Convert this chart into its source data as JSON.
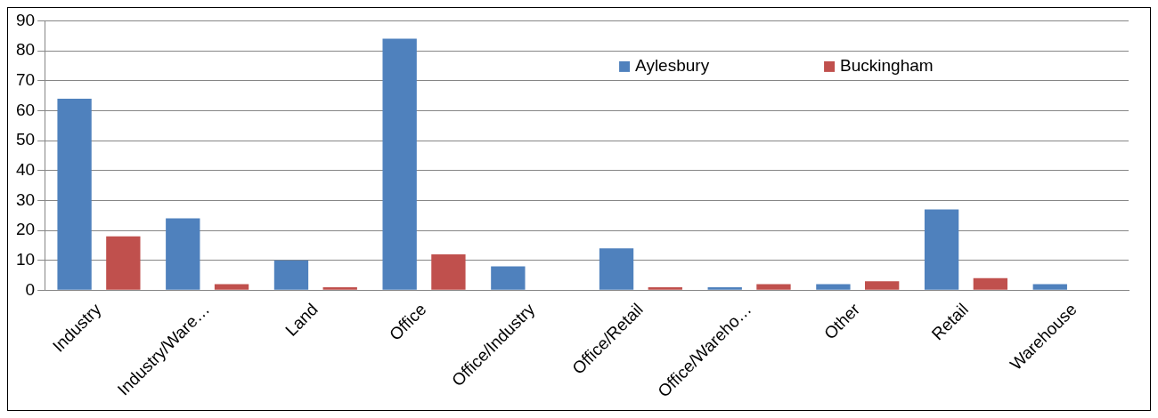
{
  "chart_data": {
    "type": "bar",
    "categories": [
      "Industry",
      "Industry/Ware…",
      "Land",
      "Office",
      "Office/Industry",
      "Office/Retail",
      "Office/Wareho…",
      "Other",
      "Retail",
      "Warehouse"
    ],
    "series": [
      {
        "name": "Aylesbury",
        "color": "#4f81bd",
        "values": [
          64,
          24,
          10,
          84,
          8,
          14,
          1,
          2,
          27,
          2
        ]
      },
      {
        "name": "Buckingham",
        "color": "#c0504d",
        "values": [
          18,
          2,
          1,
          12,
          0,
          1,
          2,
          3,
          4,
          0
        ]
      }
    ],
    "ylim": [
      0,
      90
    ],
    "yticks": [
      0,
      10,
      20,
      30,
      40,
      50,
      60,
      70,
      80,
      90
    ],
    "grid": "y",
    "legend": "top right"
  }
}
